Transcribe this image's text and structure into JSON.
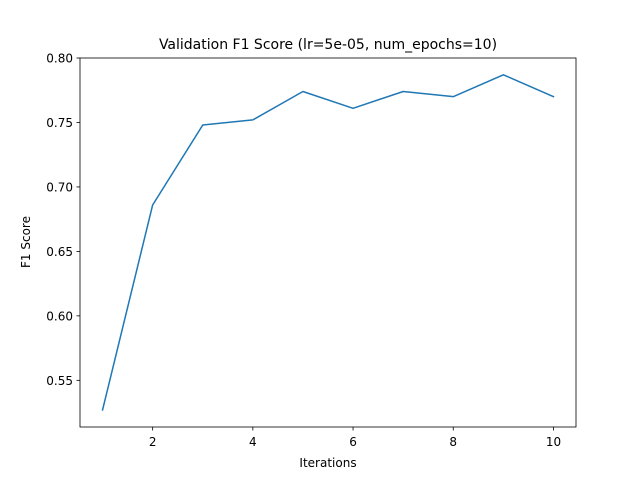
{
  "chart_data": {
    "type": "line",
    "title": "Validation F1 Score (lr=5e-05, num_epochs=10)",
    "xlabel": "Iterations",
    "ylabel": "F1 Score",
    "xlim": [
      0.55,
      10.45
    ],
    "ylim": [
      0.5138,
      0.8
    ],
    "xticks": [
      2,
      4,
      6,
      8,
      10
    ],
    "yticks": [
      0.55,
      0.6,
      0.65,
      0.7,
      0.75,
      0.8
    ],
    "xtick_labels": [
      "2",
      "4",
      "6",
      "8",
      "10"
    ],
    "ytick_labels": [
      "0.55",
      "0.60",
      "0.65",
      "0.70",
      "0.75",
      "0.80"
    ],
    "grid": false,
    "legend": "none",
    "series": [
      {
        "color": "#1f77b4",
        "x": [
          1,
          2,
          3,
          4,
          5,
          6,
          7,
          8,
          9,
          10
        ],
        "y": [
          0.527,
          0.686,
          0.748,
          0.752,
          0.774,
          0.761,
          0.774,
          0.77,
          0.787,
          0.77
        ]
      }
    ]
  }
}
